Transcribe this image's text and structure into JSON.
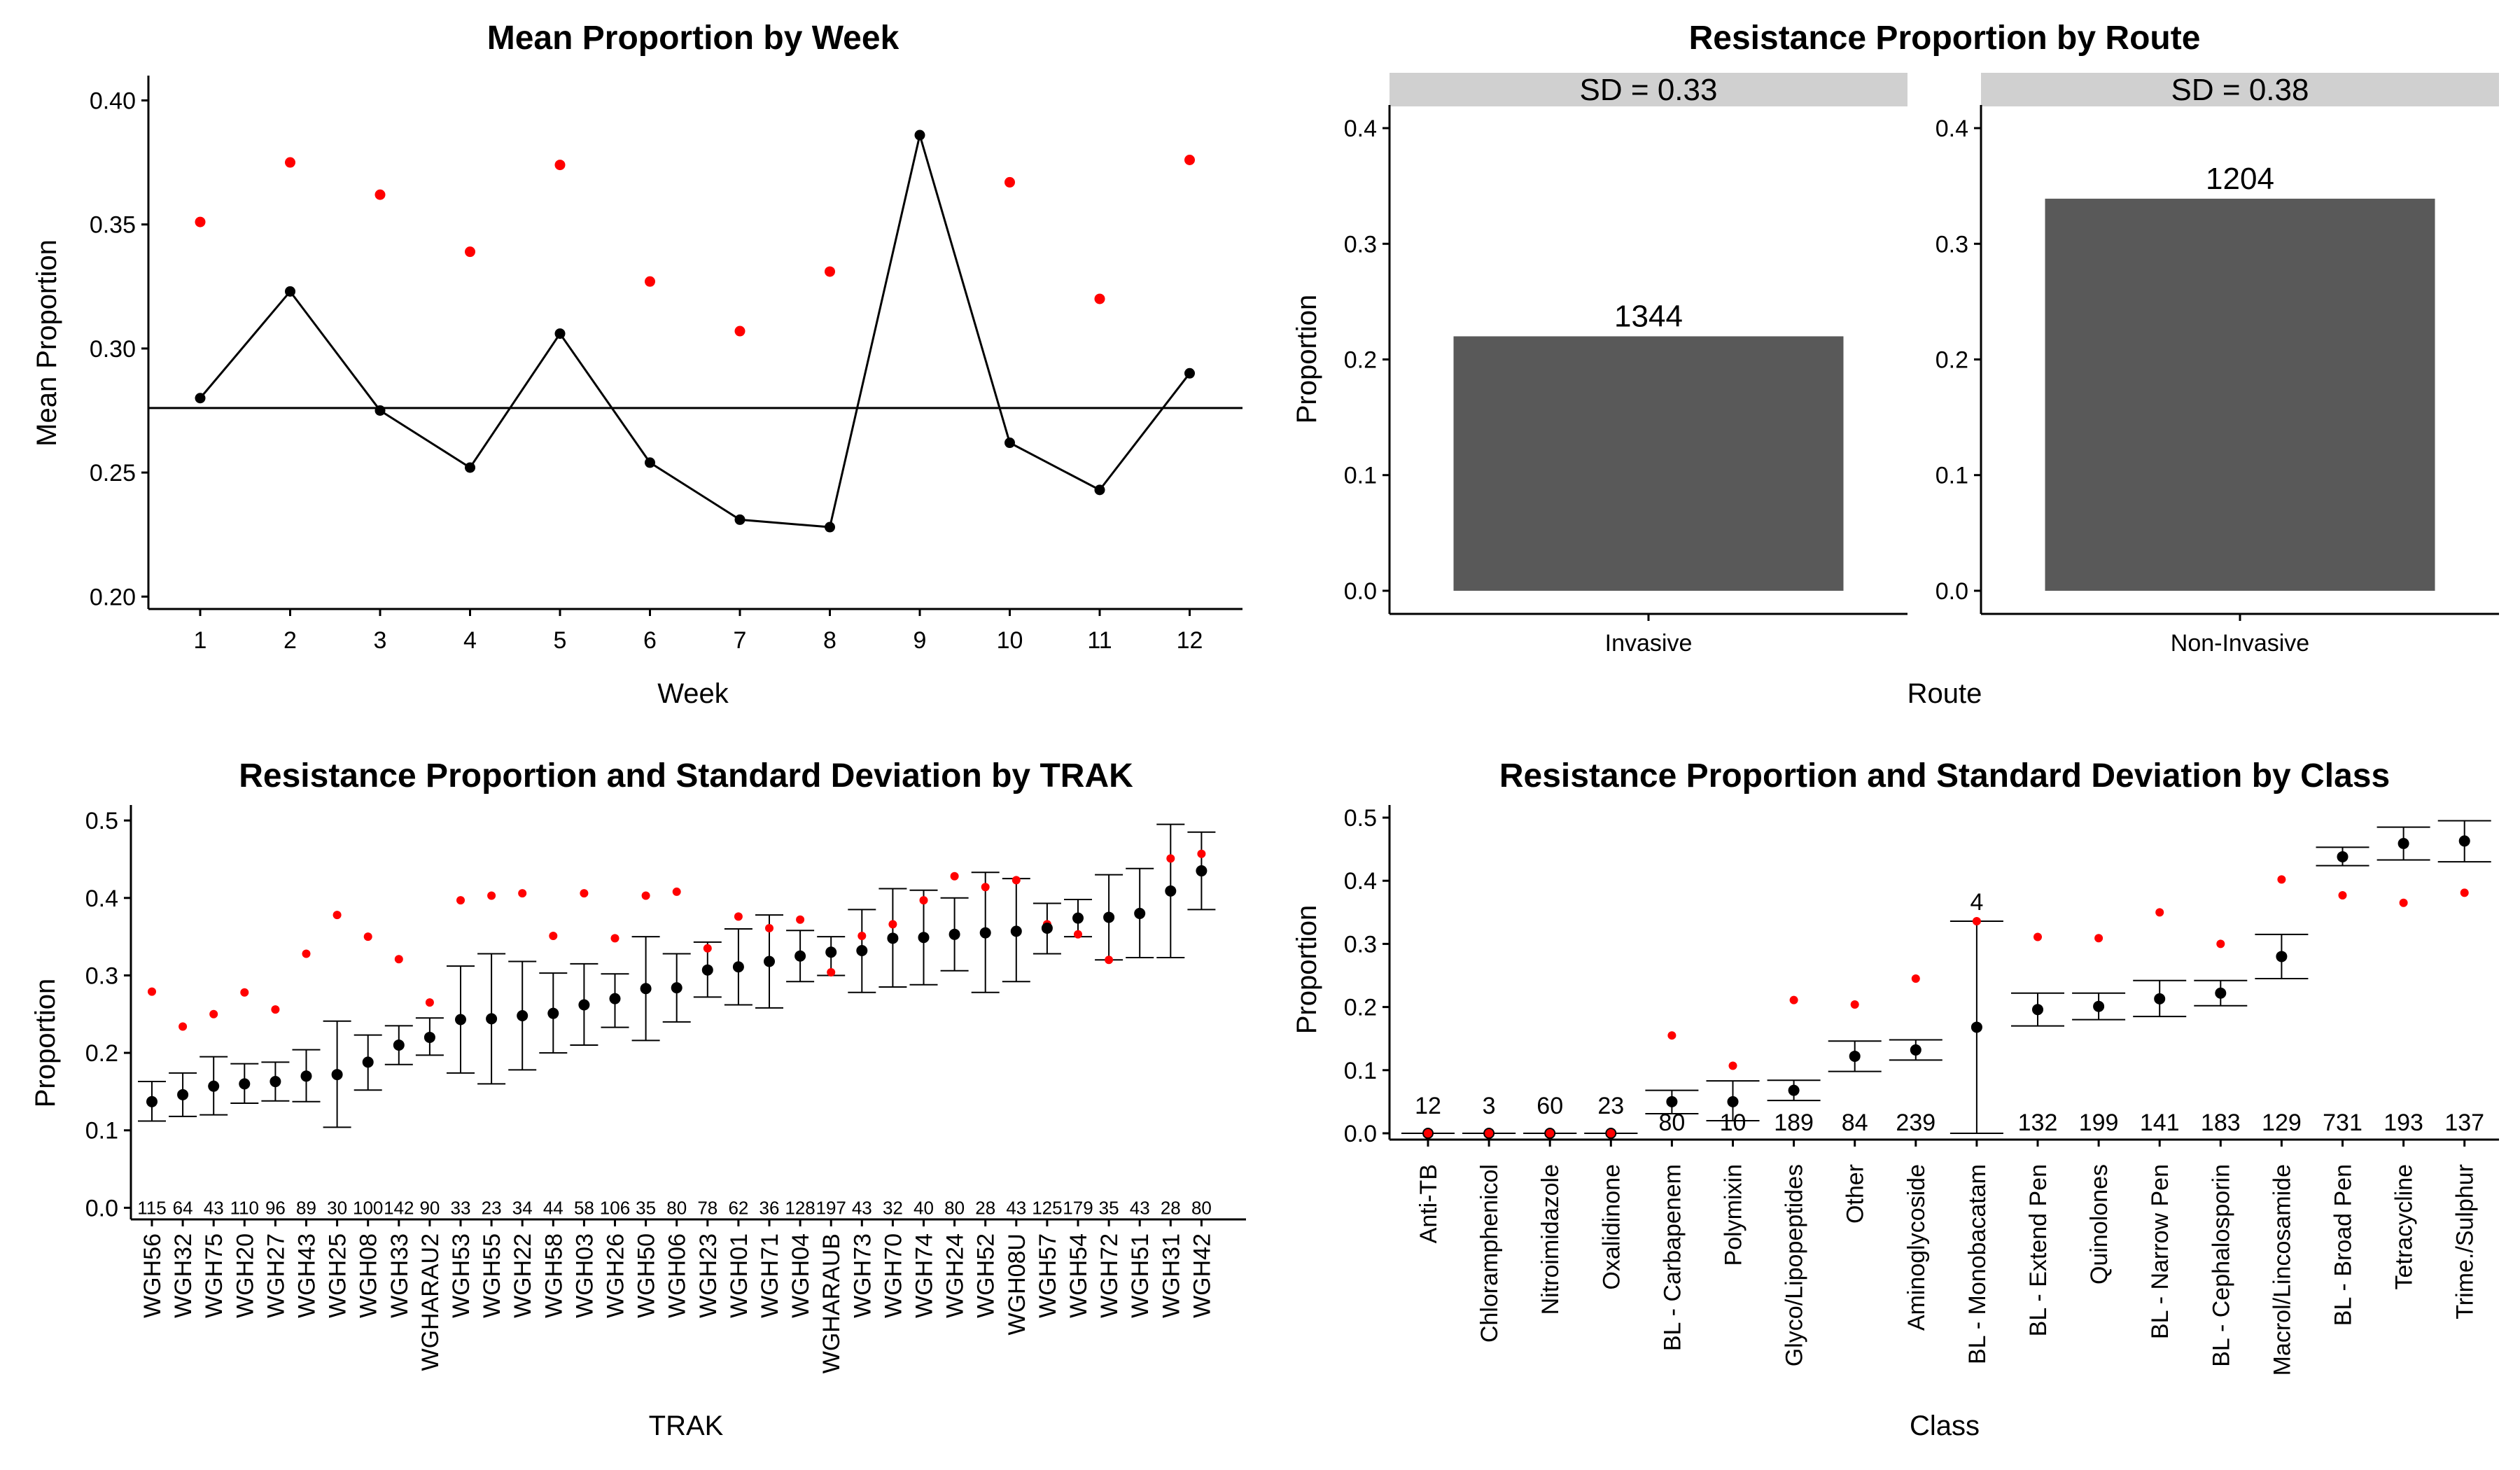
{
  "chart_data": [
    {
      "type": "line",
      "title": "Mean Proportion by Week",
      "xlabel": "Week",
      "ylabel": "Mean Proportion",
      "ylim": [
        0.195,
        0.41
      ],
      "yticks": [
        "0.20",
        "0.25",
        "0.30",
        "0.35",
        "0.40"
      ],
      "x": [
        "1",
        "2",
        "3",
        "4",
        "5",
        "6",
        "7",
        "8",
        "9",
        "10",
        "11",
        "12"
      ],
      "series": [
        {
          "values": [
            0.28,
            0.323,
            0.275,
            0.252,
            0.306,
            0.254,
            0.231,
            0.228,
            0.386,
            0.262,
            0.243,
            0.29
          ],
          "color": "#000000"
        },
        {
          "values": [
            0.351,
            0.375,
            0.362,
            0.339,
            0.374,
            0.327,
            0.307,
            0.331,
            null,
            0.367,
            0.32,
            0.376
          ],
          "color": "#ff0000"
        }
      ],
      "hline": 0.276,
      "grid": false
    },
    {
      "type": "bar",
      "title": "Resistance Proportion by Route",
      "xlabel": "Route",
      "ylabel": "Proportion",
      "ylim": [
        -0.02,
        0.42
      ],
      "yticks": [
        "0.0",
        "0.1",
        "0.2",
        "0.3",
        "0.4"
      ],
      "panels": [
        {
          "strip": "SD =  0.33",
          "category": "Invasive",
          "value": 0.22,
          "label": "1344"
        },
        {
          "strip": "SD =  0.38",
          "category": "Non-Invasive",
          "value": 0.339,
          "label": "1204"
        }
      ],
      "bar_color": "#595959",
      "strip_color": "#d0d0d0"
    },
    {
      "type": "scatter",
      "title": "Resistance Proportion and Standard Deviation by TRAK",
      "xlabel": "TRAK",
      "ylabel": "Proportion",
      "ylim": [
        -0.015,
        0.52
      ],
      "yticks": [
        "0.0",
        "0.1",
        "0.2",
        "0.3",
        "0.4",
        "0.5"
      ],
      "categories": [
        "WGH56",
        "WGH32",
        "WGH75",
        "WGH20",
        "WGH27",
        "WGH43",
        "WGH25",
        "WGH08",
        "WGH33",
        "WGHARAU2",
        "WGH53",
        "WGH55",
        "WGH22",
        "WGH58",
        "WGH03",
        "WGH26",
        "WGH50",
        "WGH06",
        "WGH23",
        "WGH01",
        "WGH71",
        "WGH04",
        "WGHARAUB",
        "WGH73",
        "WGH70",
        "WGH74",
        "WGH24",
        "WGH52",
        "WGH08U",
        "WGH57",
        "WGH54",
        "WGH72",
        "WGH51",
        "WGH31",
        "WGH42"
      ],
      "means": [
        0.137,
        0.146,
        0.157,
        0.16,
        0.163,
        0.17,
        0.172,
        0.188,
        0.21,
        0.22,
        0.243,
        0.244,
        0.248,
        0.251,
        0.262,
        0.27,
        0.283,
        0.284,
        0.307,
        0.311,
        0.318,
        0.325,
        0.33,
        0.332,
        0.348,
        0.349,
        0.353,
        0.355,
        0.357,
        0.361,
        0.374,
        0.375,
        0.38,
        0.409,
        0.435
      ],
      "lower": [
        0.112,
        0.118,
        0.12,
        0.135,
        0.138,
        0.137,
        0.104,
        0.152,
        0.185,
        0.197,
        0.174,
        0.16,
        0.178,
        0.2,
        0.21,
        0.233,
        0.216,
        0.24,
        0.272,
        0.262,
        0.258,
        0.292,
        0.3,
        0.278,
        0.285,
        0.288,
        0.306,
        0.278,
        0.292,
        0.328,
        0.35,
        0.32,
        0.323,
        0.323,
        0.385
      ],
      "upper": [
        0.163,
        0.174,
        0.195,
        0.186,
        0.188,
        0.204,
        0.241,
        0.223,
        0.235,
        0.245,
        0.312,
        0.328,
        0.318,
        0.303,
        0.315,
        0.302,
        0.35,
        0.328,
        0.343,
        0.36,
        0.378,
        0.358,
        0.35,
        0.385,
        0.412,
        0.41,
        0.4,
        0.433,
        0.425,
        0.393,
        0.398,
        0.43,
        0.438,
        0.495,
        0.485
      ],
      "pooled": [
        0.279,
        0.234,
        0.25,
        0.278,
        0.256,
        0.328,
        0.378,
        0.35,
        0.321,
        0.265,
        0.397,
        0.403,
        0.406,
        0.351,
        0.406,
        0.348,
        0.403,
        0.408,
        0.335,
        0.376,
        0.361,
        0.372,
        0.304,
        0.351,
        0.366,
        0.397,
        0.428,
        0.414,
        0.423,
        0.366,
        0.353,
        0.32,
        0.381,
        0.451,
        0.457
      ],
      "counts": [
        "115",
        "64",
        "43",
        "110",
        "96",
        "89",
        "30",
        "100",
        "142",
        "90",
        "33",
        "23",
        "34",
        "44",
        "58",
        "106",
        "35",
        "80",
        "78",
        "62",
        "36",
        "128",
        "197",
        "43",
        "32",
        "40",
        "80",
        "28",
        "43",
        "125",
        "179",
        "35",
        "43",
        "28",
        "80"
      ],
      "mean_color": "#000000",
      "pooled_color": "#ff0000"
    },
    {
      "type": "scatter",
      "title": "Resistance Proportion and Standard Deviation by Class",
      "xlabel": "Class",
      "ylabel": "Proportion",
      "ylim": [
        -0.01,
        0.52
      ],
      "yticks": [
        "0.0",
        "0.1",
        "0.2",
        "0.3",
        "0.4",
        "0.5"
      ],
      "categories": [
        "Anti-TB",
        "Chloramphenicol",
        "Nitroimidazole",
        "Oxalidinone",
        "BL - Carbapenem",
        "Polymixin",
        "Glyco/Lipopeptides",
        "Other",
        "Aminoglycoside",
        "BL - Monobacatam",
        "BL - Extend Pen",
        "Quinolones",
        "BL - Narrow Pen",
        "BL - Cephalosporin",
        "Macrol/Lincosamide",
        "BL - Broad Pen",
        "Tetracycline",
        "Trime./Sulphur"
      ],
      "means": [
        0.0,
        0.0,
        0.0,
        0.0,
        0.05,
        0.05,
        0.068,
        0.122,
        0.132,
        0.168,
        0.196,
        0.201,
        0.213,
        0.222,
        0.28,
        0.438,
        0.459,
        0.463
      ],
      "lower": [
        0.0,
        0.0,
        0.0,
        0.0,
        0.031,
        0.02,
        0.052,
        0.098,
        0.116,
        0.0,
        0.17,
        0.18,
        0.185,
        0.202,
        0.245,
        0.424,
        0.433,
        0.43
      ],
      "upper": [
        0.0,
        0.0,
        0.0,
        0.0,
        0.068,
        0.083,
        0.084,
        0.146,
        0.148,
        0.336,
        0.222,
        0.222,
        0.242,
        0.242,
        0.315,
        0.453,
        0.485,
        0.495
      ],
      "pooled": [
        0.0,
        0.0,
        0.0,
        0.0,
        0.155,
        0.107,
        0.211,
        0.204,
        0.245,
        0.336,
        0.311,
        0.309,
        0.35,
        0.3,
        0.402,
        0.377,
        0.365,
        0.381
      ],
      "counts": [
        "12",
        "3",
        "60",
        "23",
        "80",
        "10",
        "189",
        "84",
        "239",
        "4",
        "132",
        "199",
        "141",
        "183",
        "129",
        "731",
        "193",
        "137"
      ],
      "counts_above": [
        true,
        true,
        true,
        true,
        false,
        false,
        false,
        false,
        false,
        true,
        false,
        false,
        false,
        false,
        false,
        false,
        false,
        false
      ],
      "mean_color": "#000000",
      "pooled_color": "#ff0000"
    }
  ]
}
